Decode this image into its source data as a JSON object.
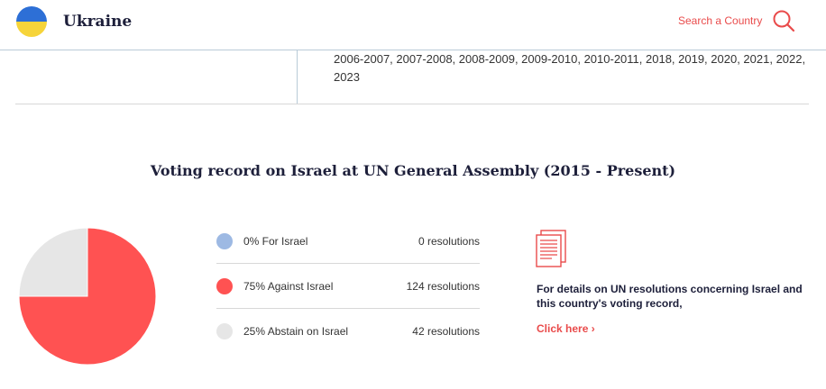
{
  "header": {
    "country": "Ukraine",
    "search_label": "Search a Country"
  },
  "years": {
    "text": "2006-2007, 2007-2008, 2008-2009, 2009-2010, 2010-2011, 2018, 2019, 2020, 2021, 2022, 2023"
  },
  "section": {
    "title": "Voting record on Israel at UN General Assembly (2015 - Present)"
  },
  "chart_data": {
    "type": "pie",
    "title": "",
    "slices": [
      {
        "label": "For Israel",
        "value": 0,
        "resolutions": 0,
        "color": "#9db9e3"
      },
      {
        "label": "Against Israel",
        "value": 75,
        "resolutions": 124,
        "color": "#ff5252"
      },
      {
        "label": "Abstain on Israel",
        "value": 25,
        "resolutions": 42,
        "color": "#e6e6e6"
      }
    ]
  },
  "legend": [
    {
      "label": "0% For Israel",
      "count": "0 resolutions",
      "color": "#9db9e3"
    },
    {
      "label": "75% Against Israel",
      "count": "124 resolutions",
      "color": "#ff5252"
    },
    {
      "label": "25% Abstain on Israel",
      "count": "42 resolutions",
      "color": "#e6e6e6"
    }
  ],
  "details": {
    "text": "For details on UN resolutions concerning Israel and this country's voting record,",
    "link_label": "Click here ›",
    "icon": "document-icon",
    "accent": "#e94b4b"
  }
}
